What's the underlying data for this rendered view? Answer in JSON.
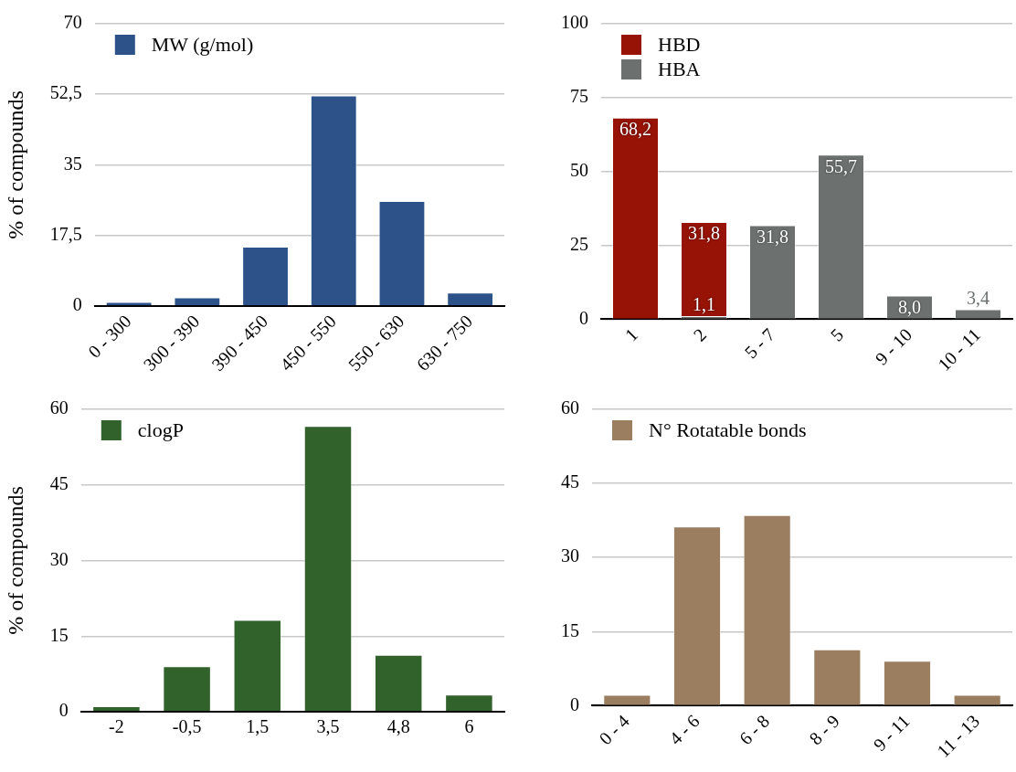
{
  "chart_data": [
    {
      "type": "bar",
      "ylabel": "% of compounds",
      "categories": [
        "0 - 300",
        "300 - 390",
        "390 - 450",
        "450 - 550",
        "550 - 630",
        "630 - 750"
      ],
      "series": [
        {
          "name": "MW (g/mol)",
          "color": "#2c5289",
          "values": [
            1.0,
            2.1,
            14.7,
            52.2,
            26.0,
            3.3
          ]
        }
      ],
      "ylim": [
        0,
        70
      ],
      "yticks": [
        0,
        {
          "value": 17.5,
          "label": "17,5"
        },
        35,
        {
          "value": 52.5,
          "label": "52,5"
        },
        70
      ],
      "grid": "y",
      "legend": "top left"
    },
    {
      "type": "bar",
      "stacked": true,
      "categories": [
        "1",
        "2",
        "5 - 7",
        "5",
        "9 - 10",
        "10 - 11"
      ],
      "series": [
        {
          "name": "HBA",
          "color": "#6c7170",
          "values": [
            null,
            1.1,
            31.8,
            55.7,
            8.0,
            3.4
          ],
          "value_labels": [
            null,
            "1,1",
            "31,8",
            "55,7",
            "8,0",
            "3,4"
          ]
        },
        {
          "name": "HBD",
          "color": "#961306",
          "values": [
            68.2,
            31.8,
            null,
            null,
            null,
            null
          ],
          "value_labels": [
            "68,2",
            "31,8",
            null,
            null,
            null,
            null
          ]
        }
      ],
      "ylim": [
        0,
        100
      ],
      "yticks": [
        0,
        25,
        50,
        75,
        100
      ],
      "grid": "y",
      "legend": "top left"
    },
    {
      "type": "bar",
      "ylabel": "% of compounds",
      "categories": [
        "-2",
        "-0,5",
        "1,5",
        "3,5",
        "4,8",
        "6"
      ],
      "series": [
        {
          "name": "clogP",
          "color": "#31622c",
          "values": [
            1.1,
            9.0,
            18.2,
            56.7,
            11.3,
            3.4
          ]
        }
      ],
      "ylim": [
        0,
        60
      ],
      "yticks": [
        0,
        15,
        30,
        45,
        60
      ],
      "grid": "y",
      "legend": "top left"
    },
    {
      "type": "bar",
      "categories": [
        "0 - 4",
        "4 - 6",
        "6 - 8",
        "8 - 9",
        "9 - 11",
        "11 - 13"
      ],
      "series": [
        {
          "name": "N° Rotatable bonds",
          "color": "#9b7d5f",
          "values": [
            2.2,
            36.3,
            38.6,
            11.4,
            9.1,
            2.2
          ]
        }
      ],
      "ylim": [
        0,
        60
      ],
      "yticks": [
        0,
        15,
        30,
        45,
        60
      ],
      "grid": "y",
      "legend": "top left"
    }
  ]
}
